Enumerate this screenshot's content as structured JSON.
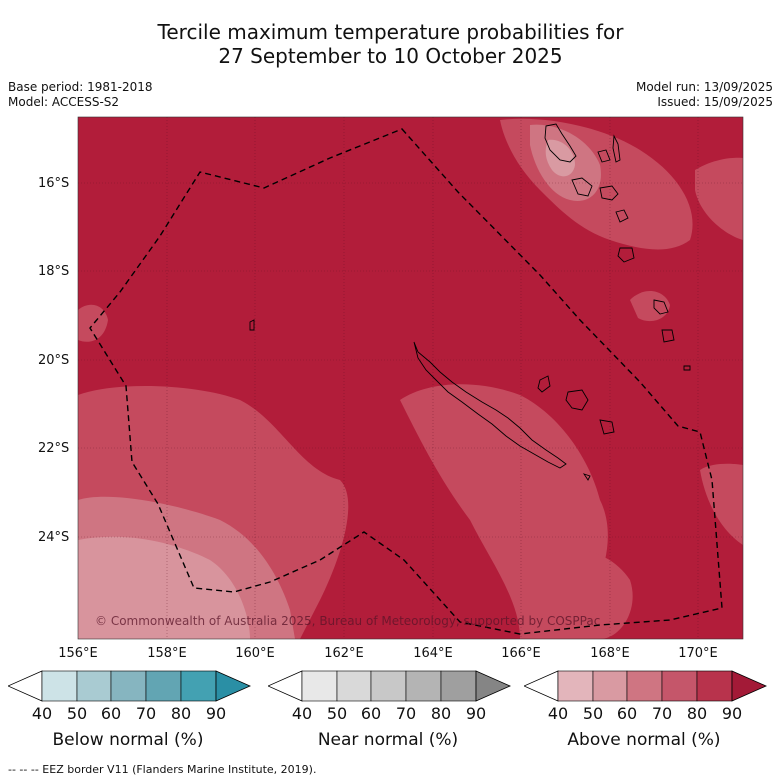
{
  "title": {
    "line1": "Tercile maximum temperature probabilities for",
    "line2": "27 September to 10 October 2025"
  },
  "meta": {
    "base_period": "Base period: 1981-2018",
    "model": "Model: ACCESS-S2",
    "model_run": "Model run: 13/09/2025",
    "issued": "Issued: 15/09/2025"
  },
  "map": {
    "lat_labels": [
      "16°S",
      "18°S",
      "20°S",
      "22°S",
      "24°S"
    ],
    "lon_labels": [
      "156°E",
      "158°E",
      "160°E",
      "162°E",
      "164°E",
      "166°E",
      "168°E",
      "170°E"
    ],
    "copyright": "© Commonwealth of Australia 2025, Bureau of Meteorology, supported by COSPPac",
    "dominant_category": "Above normal",
    "dominant_probability": "80-90",
    "colors": {
      "above_80_90": "#b21d3a",
      "above_70_80": "#c54a5e",
      "above_60_70": "#cf7582",
      "above_50_60": "#d99aa2",
      "land_outline": "#000000",
      "eez_border": "#000000"
    }
  },
  "colorbars": [
    {
      "label": "Below normal (%)",
      "ticks": [
        "40",
        "50",
        "60",
        "70",
        "80",
        "90"
      ],
      "colors": [
        "#ffffff",
        "#cde3e7",
        "#a9cbd2",
        "#86b5c0",
        "#62a5b3",
        "#43a1b2",
        "#2a8fa5"
      ]
    },
    {
      "label": "Near normal (%)",
      "ticks": [
        "40",
        "50",
        "60",
        "70",
        "80",
        "90"
      ],
      "colors": [
        "#ffffff",
        "#e8e8e8",
        "#d9d9d9",
        "#c8c8c8",
        "#b4b4b4",
        "#9f9f9f",
        "#858585"
      ]
    },
    {
      "label": "Above normal (%)",
      "ticks": [
        "40",
        "50",
        "60",
        "70",
        "80",
        "90"
      ],
      "colors": [
        "#ffffff",
        "#e3b5bb",
        "#d99aa2",
        "#cf7582",
        "#c5566a",
        "#b8334c",
        "#a31a37"
      ]
    }
  ],
  "footer": "-- -- -- EEZ border V11 (Flanders Marine Institute, 2019)."
}
